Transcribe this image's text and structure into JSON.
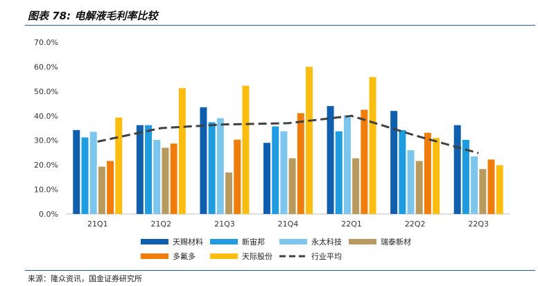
{
  "title": "图表 78:  电解液毛利率比较",
  "source": "来源：隆众资讯，国金证券研究所",
  "chart_data": {
    "type": "bar",
    "categories": [
      "21Q1",
      "21Q2",
      "21Q3",
      "21Q4",
      "22Q1",
      "22Q2",
      "22Q3"
    ],
    "y_ticks": [
      "0.0%",
      "10.0%",
      "20.0%",
      "30.0%",
      "40.0%",
      "50.0%",
      "60.0%",
      "70.0%"
    ],
    "ylim": [
      0,
      70
    ],
    "grid": false,
    "legend_position": "bottom",
    "series": [
      {
        "name": "天赐材料",
        "type": "bar",
        "color": "#0f5fae",
        "values": [
          34.2,
          36.2,
          43.5,
          29.0,
          44.0,
          42.0,
          36.2
        ]
      },
      {
        "name": "新宙邦",
        "type": "bar",
        "color": "#1f9be0",
        "values": [
          31.2,
          36.2,
          37.4,
          35.7,
          33.7,
          34.2,
          30.2
        ]
      },
      {
        "name": "永太科技",
        "type": "bar",
        "color": "#7cc6ee",
        "values": [
          33.5,
          30.2,
          39.0,
          33.7,
          40.2,
          26.0,
          23.5
        ]
      },
      {
        "name": "瑞泰新材",
        "type": "bar",
        "color": "#b89a5e",
        "values": [
          19.3,
          27.0,
          16.9,
          22.7,
          22.7,
          21.6,
          18.3
        ]
      },
      {
        "name": "多氟多",
        "type": "bar",
        "color": "#ef7d0b",
        "values": [
          21.6,
          28.7,
          30.3,
          41.1,
          42.5,
          33.1,
          22.2
        ]
      },
      {
        "name": "天际股份",
        "type": "bar",
        "color": "#fbbd10",
        "values": [
          39.3,
          51.3,
          52.3,
          60.0,
          55.8,
          31.0,
          19.9
        ]
      },
      {
        "name": "行业平均",
        "type": "line",
        "color": "#404040",
        "dash": "dashed",
        "values": [
          29.5,
          35.0,
          36.5,
          37.0,
          40.0,
          32.0,
          24.8
        ]
      }
    ]
  }
}
